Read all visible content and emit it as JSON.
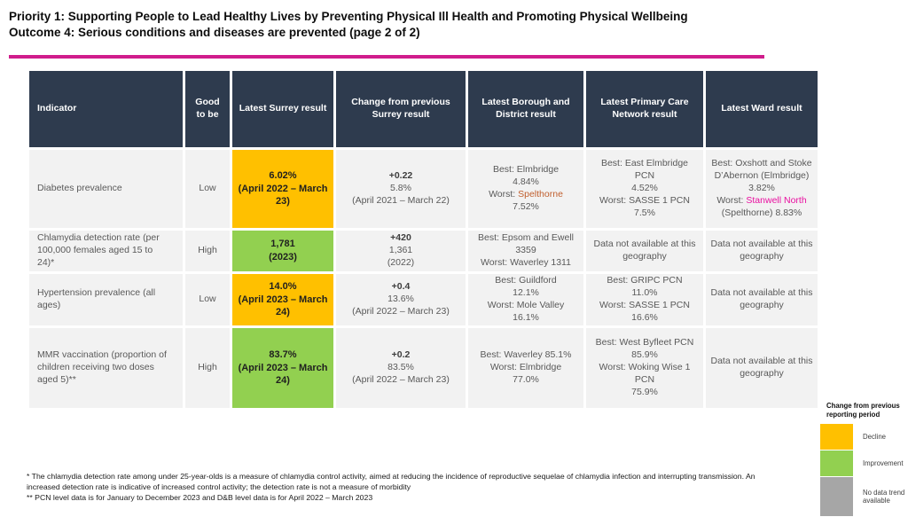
{
  "title": {
    "line1": "Priority 1: Supporting People to Lead Healthy Lives by Preventing Physical Ill Health and Promoting Physical Wellbeing",
    "line2": "Outcome 4: Serious conditions and diseases are prevented (page 2 of 2)"
  },
  "colors": {
    "accent_rule": "#d01d8c",
    "header_bg": "#2e3b4e",
    "decline": "#ffc000",
    "improvement": "#92d050",
    "no_data": "#a6a6a6",
    "worst_borough_text": "#c05f2e",
    "worst_ward_text": "#e90fa0"
  },
  "table": {
    "headers": [
      "Indicator",
      "Good to be",
      "Latest Surrey result",
      "Change from previous Surrey result",
      "Latest Borough and District result",
      "Latest Primary Care Network result",
      "Latest Ward result"
    ],
    "rows": {
      "diabetes": {
        "indicator": "Diabetes prevalence",
        "good_to_be": "Low",
        "surrey_value": "6.02%",
        "surrey_period": "(April 2022 – March 23)",
        "trend": "decline",
        "change_delta": "+0.22",
        "change_previous": "5.8%",
        "change_period": "(April 2021 – March 22)",
        "borough_best": "Best: Elmbridge",
        "borough_best_value": "4.84%",
        "borough_worst_prefix": "Worst: ",
        "borough_worst_name": "Spelthorne",
        "borough_worst_value": "7.52%",
        "pcn_best": "Best: East Elmbridge PCN",
        "pcn_best_value": "4.52%",
        "pcn_worst": "Worst: SASSE 1 PCN",
        "pcn_worst_value": "7.5%",
        "ward_best": "Best: Oxshott and Stoke D’Abernon (Elmbridge) 3.82%",
        "ward_worst_prefix": "Worst: ",
        "ward_worst_name": "Stanwell North",
        "ward_worst_rest": " (Spelthorne) 8.83%"
      },
      "chlamydia": {
        "indicator": "Chlamydia detection rate (per 100,000 females aged 15 to 24)*",
        "good_to_be": "High",
        "surrey_value": "1,781",
        "surrey_period": "(2023)",
        "trend": "improvement",
        "change_delta": "+420",
        "change_previous": "1,361",
        "change_period": "(2022)",
        "borough_best": "Best: Epsom and Ewell  3359",
        "borough_worst": "Worst: Waverley 1311",
        "pcn_na": "Data not available at this geography",
        "ward_na": "Data not available at this geography"
      },
      "hypertension": {
        "indicator": "Hypertension prevalence (all ages)",
        "good_to_be": "Low",
        "surrey_value": "14.0%",
        "surrey_period": "(April 2023 – March 24)",
        "trend": "decline",
        "change_delta": "+0.4",
        "change_previous": "13.6%",
        "change_period": "(April 2022 – March 23)",
        "borough_best": "Best: Guildford",
        "borough_best_value": "12.1%",
        "borough_worst": "Worst: Mole Valley",
        "borough_worst_value": "16.1%",
        "pcn_best": "Best: GRIPC PCN",
        "pcn_best_value": "11.0%",
        "pcn_worst": "Worst: SASSE 1 PCN",
        "pcn_worst_value": "16.6%",
        "ward_na": "Data not available at this geography"
      },
      "mmr": {
        "indicator": "MMR vaccination (proportion of children receiving two doses aged 5)**",
        "good_to_be": "High",
        "surrey_value": "83.7%",
        "surrey_period": "(April 2023 – March 24)",
        "trend": "improvement",
        "change_delta": "+0.2",
        "change_previous": "83.5%",
        "change_period": "(April 2022 – March 23)",
        "borough_best": "Best: Waverley 85.1%",
        "borough_worst": "Worst: Elmbridge",
        "borough_worst_value": "77.0%",
        "pcn_best": "Best: West Byfleet PCN",
        "pcn_best_value": "85.9%",
        "pcn_worst": "Worst: Woking Wise 1 PCN",
        "pcn_worst_value": "75.9%",
        "ward_na": "Data not available at this geography"
      }
    }
  },
  "legend": {
    "title": "Change from previous reporting period",
    "items": [
      {
        "label": "Decline",
        "color": "#ffc000"
      },
      {
        "label": "Improvement",
        "color": "#92d050"
      },
      {
        "label": "No data trend available",
        "color": "#a6a6a6"
      }
    ]
  },
  "footnotes": {
    "line1": "* The chlamydia detection rate among under 25-year-olds is a measure of chlamydia control activity, aimed at reducing the incidence of reproductive sequelae of chlamydia infection and interrupting transmission. An increased detection rate is indicative of increased control activity; the detection rate is not a measure of morbidity",
    "line2": "** PCN level data is for January to December 2023  and D&B level data is for April 2022 – March 2023"
  }
}
